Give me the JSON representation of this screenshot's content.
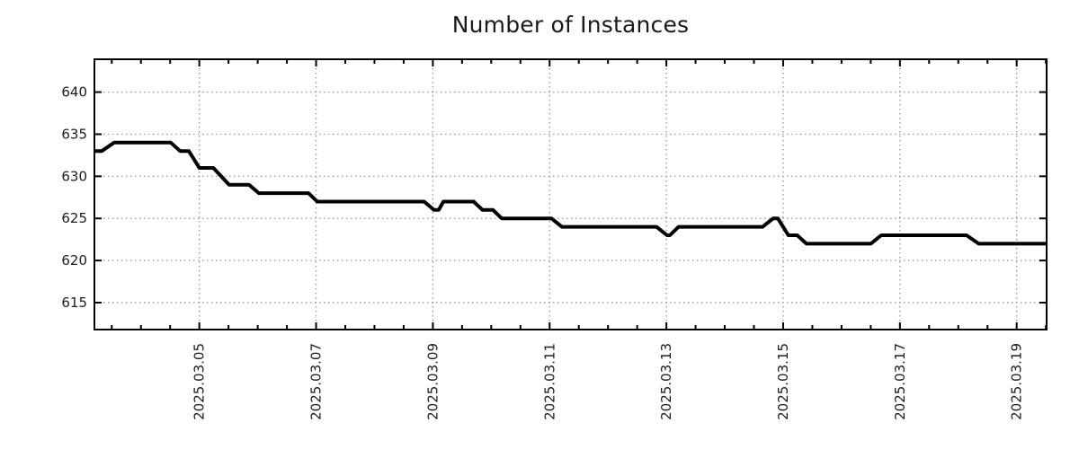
{
  "title": "Number of Instances",
  "chart_data": {
    "type": "line",
    "title": "Number of Instances",
    "x_unit": "date, March 2025 (fractional day = intraday time)",
    "xlim": [
      3.203,
      19.513
    ],
    "ylim": [
      611.8,
      643.9
    ],
    "grid": "dotted lines at major ticks, both axes",
    "legend": "none",
    "line_width": 4,
    "x_minor_step": 0.5,
    "colors": {
      "line": "#000000",
      "grid": "#9e9e9e",
      "border": "#000000",
      "text": "#1c1c1c",
      "background": "#ffffff"
    },
    "x_ticks": [
      {
        "day": 5,
        "label": "2025.03.05"
      },
      {
        "day": 7,
        "label": "2025.03.07"
      },
      {
        "day": 9,
        "label": "2025.03.09"
      },
      {
        "day": 11,
        "label": "2025.03.11"
      },
      {
        "day": 13,
        "label": "2025.03.13"
      },
      {
        "day": 15,
        "label": "2025.03.15"
      },
      {
        "day": 17,
        "label": "2025.03.17"
      },
      {
        "day": 19,
        "label": "2025.03.19"
      }
    ],
    "y_ticks": [
      {
        "value": 615,
        "label": "615"
      },
      {
        "value": 620,
        "label": "620"
      },
      {
        "value": 625,
        "label": "625"
      },
      {
        "value": 630,
        "label": "630"
      },
      {
        "value": 635,
        "label": "635"
      },
      {
        "value": 640,
        "label": "640"
      }
    ],
    "series": [
      {
        "name": "instances",
        "color": "#000000",
        "points": [
          [
            3.203,
            633
          ],
          [
            3.33,
            633
          ],
          [
            3.54,
            634
          ],
          [
            4.51,
            634
          ],
          [
            4.67,
            633
          ],
          [
            4.82,
            633
          ],
          [
            5.0,
            631
          ],
          [
            5.24,
            631
          ],
          [
            5.51,
            629
          ],
          [
            5.85,
            629
          ],
          [
            6.02,
            628
          ],
          [
            6.87,
            628
          ],
          [
            7.02,
            627
          ],
          [
            8.85,
            627
          ],
          [
            9.02,
            626
          ],
          [
            9.1,
            626
          ],
          [
            9.18,
            627
          ],
          [
            9.7,
            627
          ],
          [
            9.85,
            626
          ],
          [
            10.03,
            626
          ],
          [
            10.18,
            625
          ],
          [
            11.03,
            625
          ],
          [
            11.21,
            624
          ],
          [
            12.83,
            624
          ],
          [
            13.01,
            623
          ],
          [
            13.06,
            623
          ],
          [
            13.21,
            624
          ],
          [
            14.65,
            624
          ],
          [
            14.83,
            625
          ],
          [
            14.91,
            625
          ],
          [
            15.09,
            623
          ],
          [
            15.24,
            623
          ],
          [
            15.4,
            622
          ],
          [
            16.5,
            622
          ],
          [
            16.68,
            623
          ],
          [
            18.14,
            623
          ],
          [
            18.35,
            622
          ],
          [
            19.513,
            622
          ]
        ]
      }
    ]
  }
}
